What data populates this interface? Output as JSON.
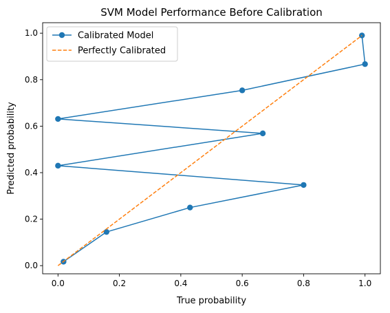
{
  "chart_data": {
    "type": "line",
    "title": "SVM Model Performance Before Calibration",
    "xlabel": "True probability",
    "ylabel": "Predicted probability",
    "xlim": [
      -0.05,
      1.05
    ],
    "ylim": [
      -0.035,
      1.045
    ],
    "xticks": [
      0.0,
      0.2,
      0.4,
      0.6,
      0.8,
      1.0
    ],
    "xtick_labels": [
      "0.0",
      "0.2",
      "0.4",
      "0.6",
      "0.8",
      "1.0"
    ],
    "yticks": [
      0.0,
      0.2,
      0.4,
      0.6,
      0.8,
      1.0
    ],
    "ytick_labels": [
      "0.0",
      "0.2",
      "0.4",
      "0.6",
      "0.8",
      "1.0"
    ],
    "grid": false,
    "legend_position": "top-left",
    "series": [
      {
        "name": "Calibrated Model",
        "style": "solid-with-markers",
        "color": "#1f77b4",
        "x": [
          0.018,
          0.158,
          0.43,
          0.8,
          0.0,
          0.667,
          0.0,
          0.6,
          1.0,
          0.99
        ],
        "y": [
          0.017,
          0.145,
          0.25,
          0.347,
          0.43,
          0.569,
          0.631,
          0.754,
          0.867,
          0.99
        ]
      },
      {
        "name": "Perfectly Calibrated",
        "style": "dashed",
        "color": "#ff7f0e",
        "x": [
          0.0,
          0.99
        ],
        "y": [
          0.0,
          0.99
        ]
      }
    ]
  }
}
